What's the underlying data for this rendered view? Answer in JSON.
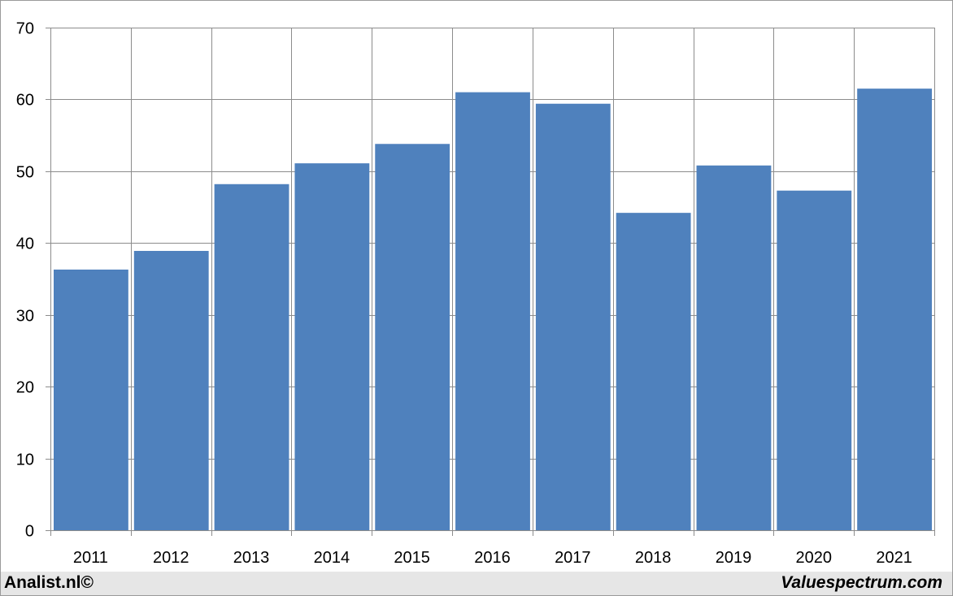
{
  "chart_data": {
    "type": "bar",
    "title": "",
    "xlabel": "",
    "ylabel": "",
    "categories": [
      "2011",
      "2012",
      "2013",
      "2014",
      "2015",
      "2016",
      "2017",
      "2018",
      "2019",
      "2020",
      "2021"
    ],
    "values": [
      36.3,
      38.9,
      48.2,
      51.1,
      53.8,
      61.0,
      59.4,
      44.2,
      50.8,
      47.3,
      61.5
    ],
    "ylim": [
      0,
      70
    ],
    "yticks": [
      "0",
      "10",
      "20",
      "30",
      "40",
      "50",
      "60",
      "70"
    ],
    "grid": true,
    "legend": "none",
    "bar_color": "#4f81bd",
    "grid_color": "#8c8c8c"
  },
  "footer": {
    "left": "Analist.nl©",
    "right": "Valuespectrum.com"
  }
}
